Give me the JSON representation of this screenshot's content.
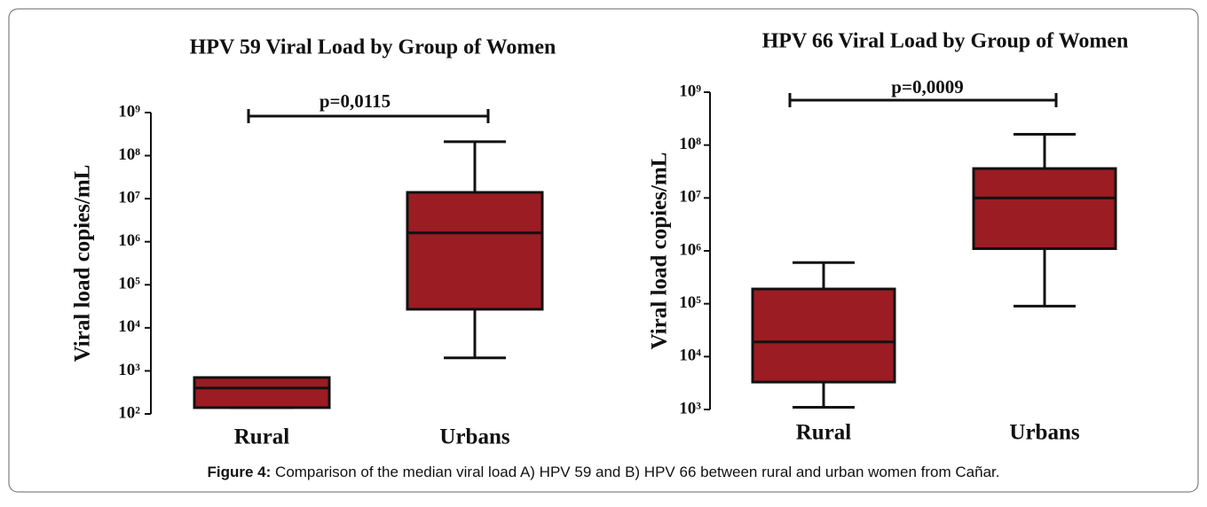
{
  "chart_data": [
    {
      "type": "box",
      "title": "HPV 59 Viral Load by Group of Women",
      "y_label": "Viral load copies/mL",
      "annotation": "p=0,0115",
      "log_scale": true,
      "color": "#9b1c22",
      "categories": [
        "Rural",
        "Urbans"
      ],
      "boxes": [
        {
          "min": 140,
          "q1": 140,
          "median": 400,
          "q3": 700,
          "max": 700
        },
        {
          "min": 2000,
          "q1": 27000,
          "median": 1600000,
          "q3": 14000000,
          "max": 210000000
        }
      ],
      "ylim": [
        100,
        1000000000
      ],
      "yticks": [
        {
          "value": 100,
          "label": "10²"
        },
        {
          "value": 1000,
          "label": "10³"
        },
        {
          "value": 10000,
          "label": "10⁴"
        },
        {
          "value": 100000,
          "label": "10⁵"
        },
        {
          "value": 1000000,
          "label": "10⁶"
        },
        {
          "value": 10000000,
          "label": "10⁷"
        },
        {
          "value": 100000000,
          "label": "10⁸"
        },
        {
          "value": 1000000000,
          "label": "10⁹"
        }
      ]
    },
    {
      "type": "box",
      "title": "HPV 66 Viral Load by Group of Women",
      "y_label": "Viral load copies/mL",
      "annotation": "p=0,0009",
      "log_scale": true,
      "color": "#9b1c22",
      "categories": [
        "Rural",
        "Urbans"
      ],
      "boxes": [
        {
          "min": 1100,
          "q1": 3300,
          "median": 19000,
          "q3": 190000,
          "max": 600000
        },
        {
          "min": 90000,
          "q1": 1100000,
          "median": 10000000,
          "q3": 36000000,
          "max": 160000000
        }
      ],
      "ylim": [
        1000,
        1000000000
      ],
      "yticks": [
        {
          "value": 1000,
          "label": "10³"
        },
        {
          "value": 10000,
          "label": "10⁴"
        },
        {
          "value": 100000,
          "label": "10⁵"
        },
        {
          "value": 1000000,
          "label": "10⁶"
        },
        {
          "value": 10000000,
          "label": "10⁷"
        },
        {
          "value": 100000000,
          "label": "10⁸"
        },
        {
          "value": 1000000000,
          "label": "10⁹"
        }
      ]
    }
  ],
  "caption": {
    "label": "Figure 4:",
    "text": " Comparison of the median viral load A) HPV 59 and B) HPV 66 between rural and urban women from Cañar."
  }
}
